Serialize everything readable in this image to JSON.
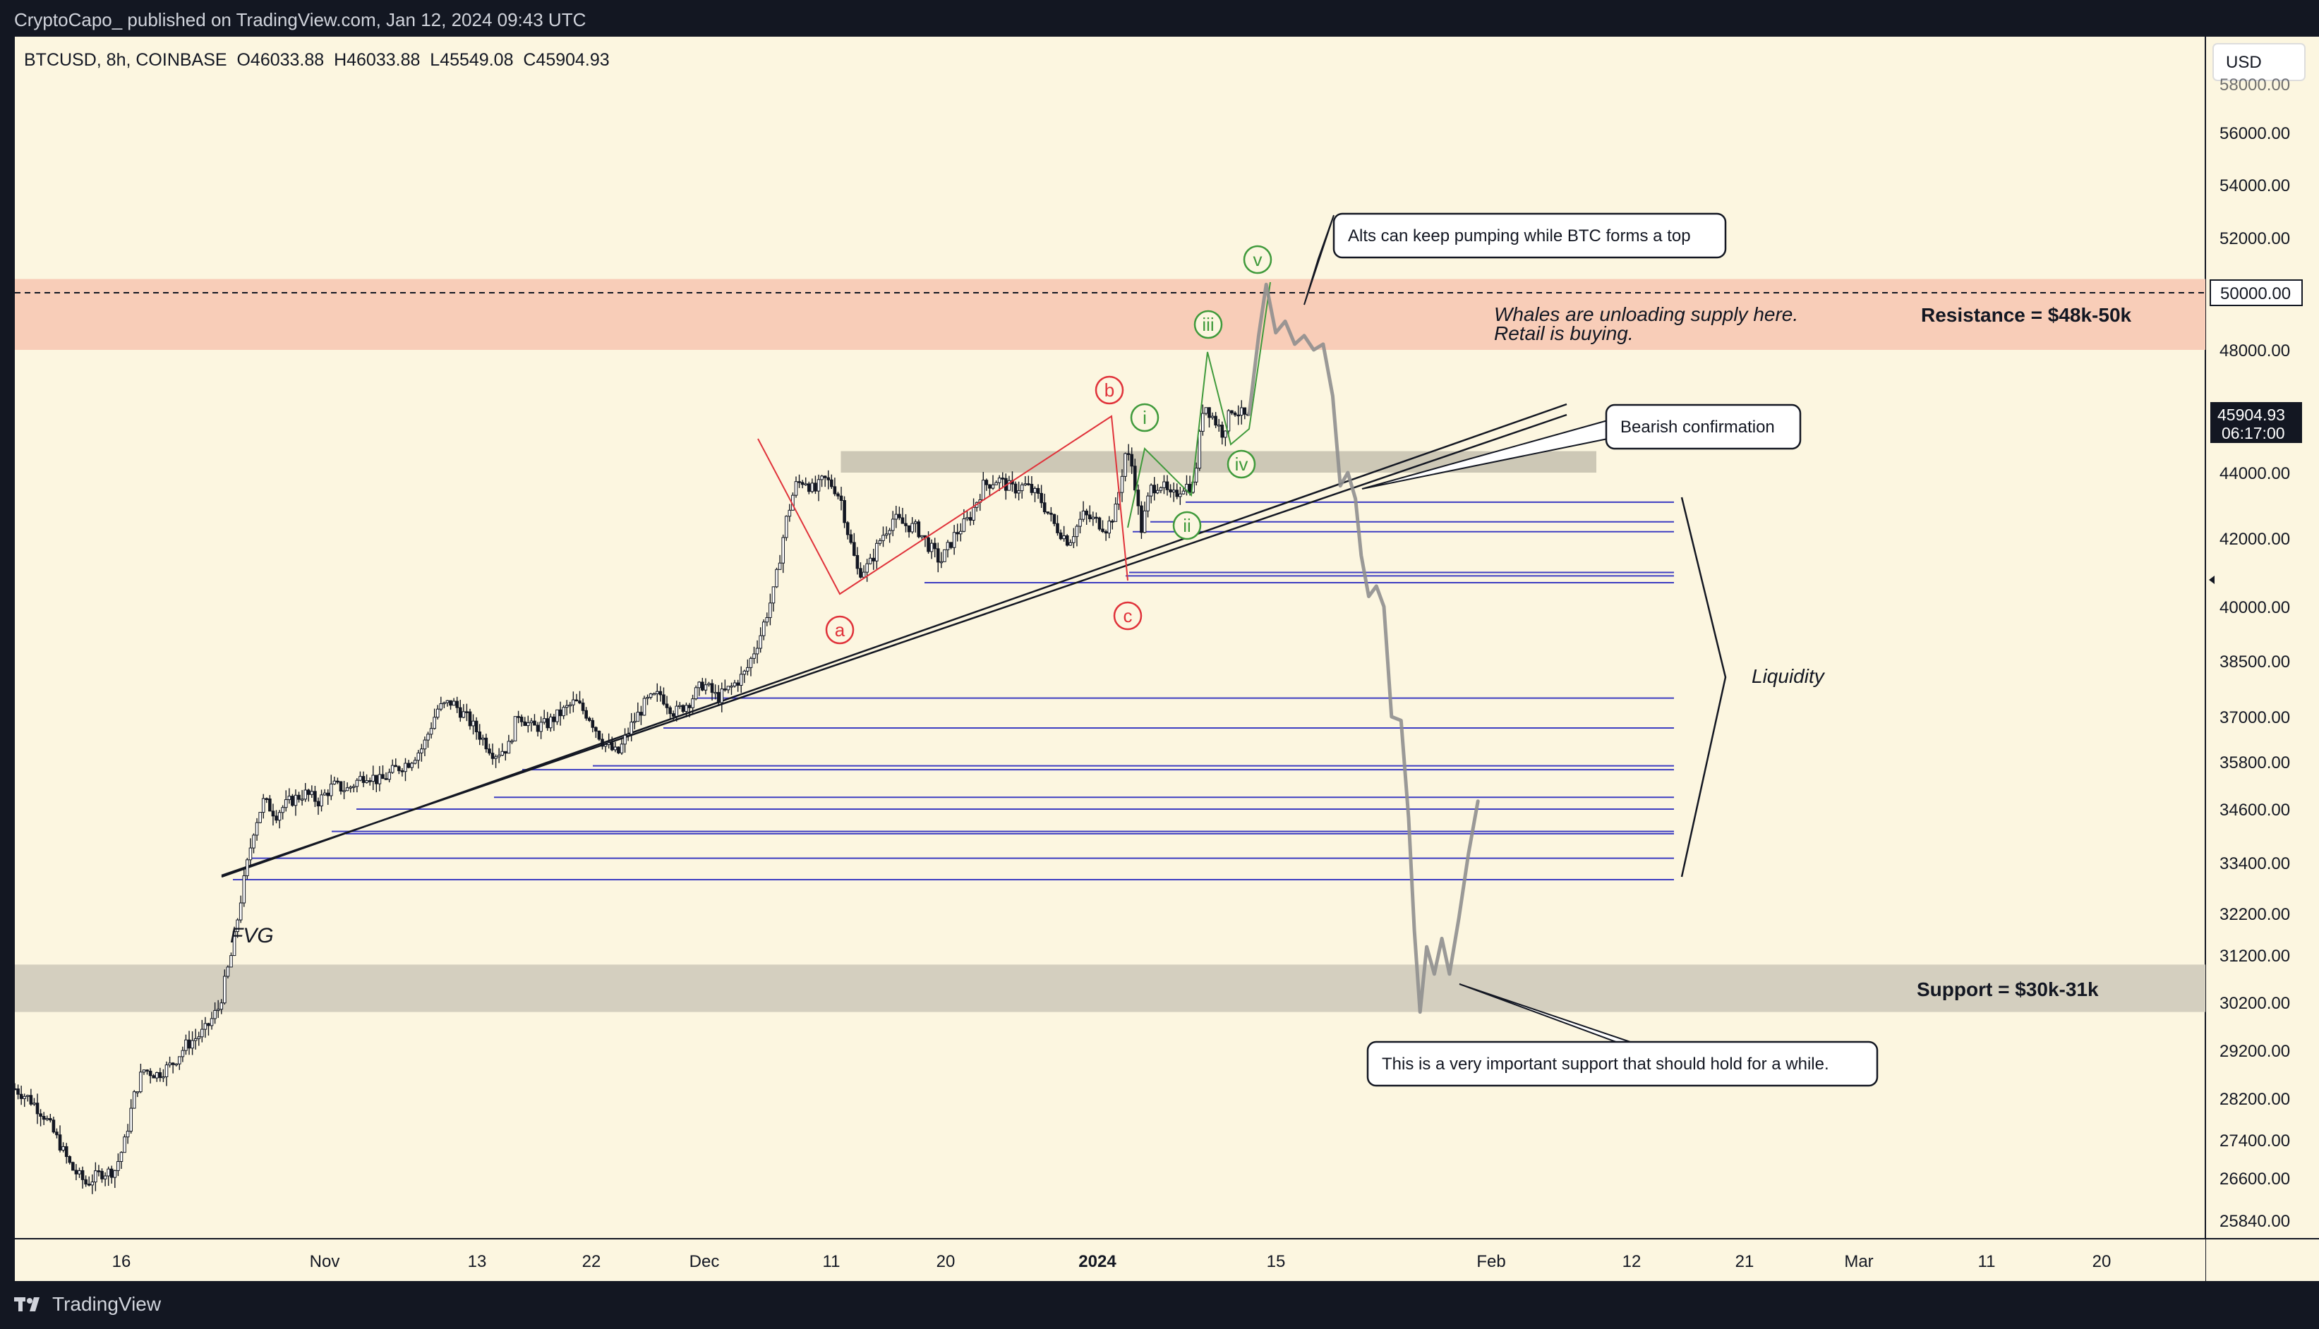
{
  "header": {
    "published_text": "CryptoCapo_ published on TradingView.com, Jan 12, 2024 09:43 UTC"
  },
  "footer": {
    "brand": "TradingView"
  },
  "chart_data": {
    "type": "candlestick",
    "symbol_line": "BTCUSD, 8h, COINBASE  O46033.88  H46033.88  L45549.08  C45904.93",
    "currency": "USD",
    "ohlc": {
      "open": 46033.88,
      "high": 46033.88,
      "low": 45549.08,
      "close": 45904.93
    },
    "last_price_label": "45904.93",
    "countdown_label": "06:17:00",
    "price_marker_label": "50000.00",
    "y_ticks": [
      "56000.00",
      "54000.00",
      "52000.00",
      "50000.00",
      "48000.00",
      "44000.00",
      "42000.00",
      "40000.00",
      "38500.00",
      "37000.00",
      "35800.00",
      "34600.00",
      "33400.00",
      "32200.00",
      "31200.00",
      "30200.00",
      "29200.00",
      "28200.00",
      "27400.00",
      "26600.00",
      "25840.00"
    ],
    "x_ticks": [
      "16",
      "Nov",
      "13",
      "22",
      "Dec",
      "11",
      "20",
      "2024",
      "15",
      "Feb",
      "12",
      "21",
      "Mar",
      "11",
      "20"
    ],
    "ylim": [
      25400,
      58300
    ],
    "zones": [
      {
        "name": "Resistance = $48k-50k",
        "low": 48000,
        "high": 50500,
        "color": "#f8cdb8"
      },
      {
        "name": "Support = $30k-31k",
        "low": 30000,
        "high": 31000,
        "color": "#d4cfbf"
      },
      {
        "name": "",
        "low": 44000,
        "high": 44700,
        "color": "#cdc8b6"
      }
    ],
    "price_path": [
      [
        0,
        28400
      ],
      [
        15,
        28200
      ],
      [
        30,
        27900
      ],
      [
        45,
        27400
      ],
      [
        60,
        26800
      ],
      [
        75,
        26500
      ],
      [
        90,
        26700
      ],
      [
        105,
        26750
      ],
      [
        115,
        27300
      ],
      [
        125,
        28200
      ],
      [
        135,
        28800
      ],
      [
        150,
        28700
      ],
      [
        165,
        28900
      ],
      [
        180,
        29300
      ],
      [
        200,
        29600
      ],
      [
        215,
        30100
      ],
      [
        228,
        31200
      ],
      [
        240,
        32800
      ],
      [
        252,
        34200
      ],
      [
        262,
        34800
      ],
      [
        275,
        34500
      ],
      [
        290,
        34800
      ],
      [
        305,
        35000
      ],
      [
        320,
        34800
      ],
      [
        335,
        35200
      ],
      [
        350,
        35100
      ],
      [
        370,
        35500
      ],
      [
        385,
        35300
      ],
      [
        400,
        35600
      ],
      [
        415,
        35800
      ],
      [
        430,
        36200
      ],
      [
        445,
        37200
      ],
      [
        460,
        37400
      ],
      [
        475,
        37000
      ],
      [
        490,
        36500
      ],
      [
        505,
        36000
      ],
      [
        520,
        36200
      ],
      [
        530,
        37100
      ],
      [
        545,
        36700
      ],
      [
        560,
        36800
      ],
      [
        575,
        37100
      ],
      [
        590,
        37400
      ],
      [
        605,
        37000
      ],
      [
        620,
        36300
      ],
      [
        635,
        36000
      ],
      [
        650,
        36800
      ],
      [
        665,
        37400
      ],
      [
        680,
        37600
      ],
      [
        695,
        37100
      ],
      [
        710,
        37400
      ],
      [
        725,
        37900
      ],
      [
        740,
        37500
      ],
      [
        755,
        37800
      ],
      [
        770,
        38200
      ],
      [
        785,
        39200
      ],
      [
        800,
        40500
      ],
      [
        812,
        42500
      ],
      [
        822,
        43600
      ],
      [
        832,
        43800
      ],
      [
        842,
        43400
      ],
      [
        852,
        43800
      ],
      [
        862,
        43600
      ],
      [
        870,
        43200
      ],
      [
        878,
        42100
      ],
      [
        888,
        41000
      ],
      [
        900,
        41200
      ],
      [
        912,
        42000
      ],
      [
        925,
        42600
      ],
      [
        938,
        42400
      ],
      [
        950,
        42300
      ],
      [
        962,
        41800
      ],
      [
        975,
        41300
      ],
      [
        990,
        42100
      ],
      [
        1005,
        42600
      ],
      [
        1020,
        43600
      ],
      [
        1035,
        43800
      ],
      [
        1050,
        43500
      ],
      [
        1065,
        43600
      ],
      [
        1080,
        43200
      ],
      [
        1095,
        42400
      ],
      [
        1110,
        41900
      ],
      [
        1125,
        42700
      ],
      [
        1140,
        42500
      ],
      [
        1150,
        42300
      ],
      [
        1160,
        42900
      ],
      [
        1170,
        44700
      ],
      [
        1178,
        44100
      ],
      [
        1186,
        42200
      ],
      [
        1196,
        43500
      ],
      [
        1206,
        43700
      ],
      [
        1218,
        43200
      ],
      [
        1230,
        43600
      ],
      [
        1242,
        43600
      ],
      [
        1252,
        46300
      ],
      [
        1262,
        45800
      ],
      [
        1272,
        45300
      ],
      [
        1282,
        46100
      ],
      [
        1292,
        45900
      ],
      [
        1300,
        45700
      ]
    ],
    "forecast_path": [
      [
        1300,
        45900
      ],
      [
        1310,
        48500
      ],
      [
        1318,
        50300
      ],
      [
        1328,
        48600
      ],
      [
        1338,
        49000
      ],
      [
        1348,
        48200
      ],
      [
        1358,
        48500
      ],
      [
        1368,
        48000
      ],
      [
        1378,
        48200
      ],
      [
        1388,
        46500
      ],
      [
        1396,
        43600
      ],
      [
        1404,
        44000
      ],
      [
        1412,
        43200
      ],
      [
        1418,
        41500
      ],
      [
        1426,
        40300
      ],
      [
        1434,
        40600
      ],
      [
        1442,
        40000
      ],
      [
        1450,
        37000
      ],
      [
        1460,
        36900
      ],
      [
        1468,
        34400
      ],
      [
        1474,
        31800
      ],
      [
        1480,
        30000
      ],
      [
        1487,
        31400
      ],
      [
        1495,
        30800
      ],
      [
        1503,
        31600
      ],
      [
        1511,
        30800
      ],
      [
        1521,
        32100
      ],
      [
        1531,
        33600
      ],
      [
        1541,
        34800
      ]
    ],
    "wave_labels": [
      {
        "text": "a",
        "color": "#e0323a"
      },
      {
        "text": "b",
        "color": "#e0323a"
      },
      {
        "text": "c",
        "color": "#e0323a"
      },
      {
        "text": "i",
        "color": "#3f9a3b"
      },
      {
        "text": "ii",
        "color": "#3f9a3b"
      },
      {
        "text": "iii",
        "color": "#3f9a3b"
      },
      {
        "text": "iv",
        "color": "#3f9a3b"
      },
      {
        "text": "v",
        "color": "#3f9a3b"
      }
    ],
    "liquidity_levels": [
      43100,
      42500,
      42200,
      41000,
      40900,
      40700,
      37500,
      36700,
      35700,
      35600,
      34900,
      34600,
      34100,
      34050,
      33500,
      33000
    ],
    "annotations": {
      "alts_callout": "Alts can keep pumping while BTC forms a top",
      "whales_line1": "Whales are unloading supply here.",
      "whales_line2": "Retail is buying.",
      "bearish": "Bearish confirmation",
      "liquidity": "Liquidity",
      "fvg": "FVG",
      "support_note": "This is a very important support that should hold for a while."
    },
    "colors": {
      "background": "#fcf6e0",
      "candle": "#131722",
      "levels": "#3d3dc2",
      "forecast": "#8f8f8f",
      "wave_abc": "#e0323a",
      "wave_impulse": "#3f9a3b",
      "last_price_box": "#131722"
    }
  }
}
